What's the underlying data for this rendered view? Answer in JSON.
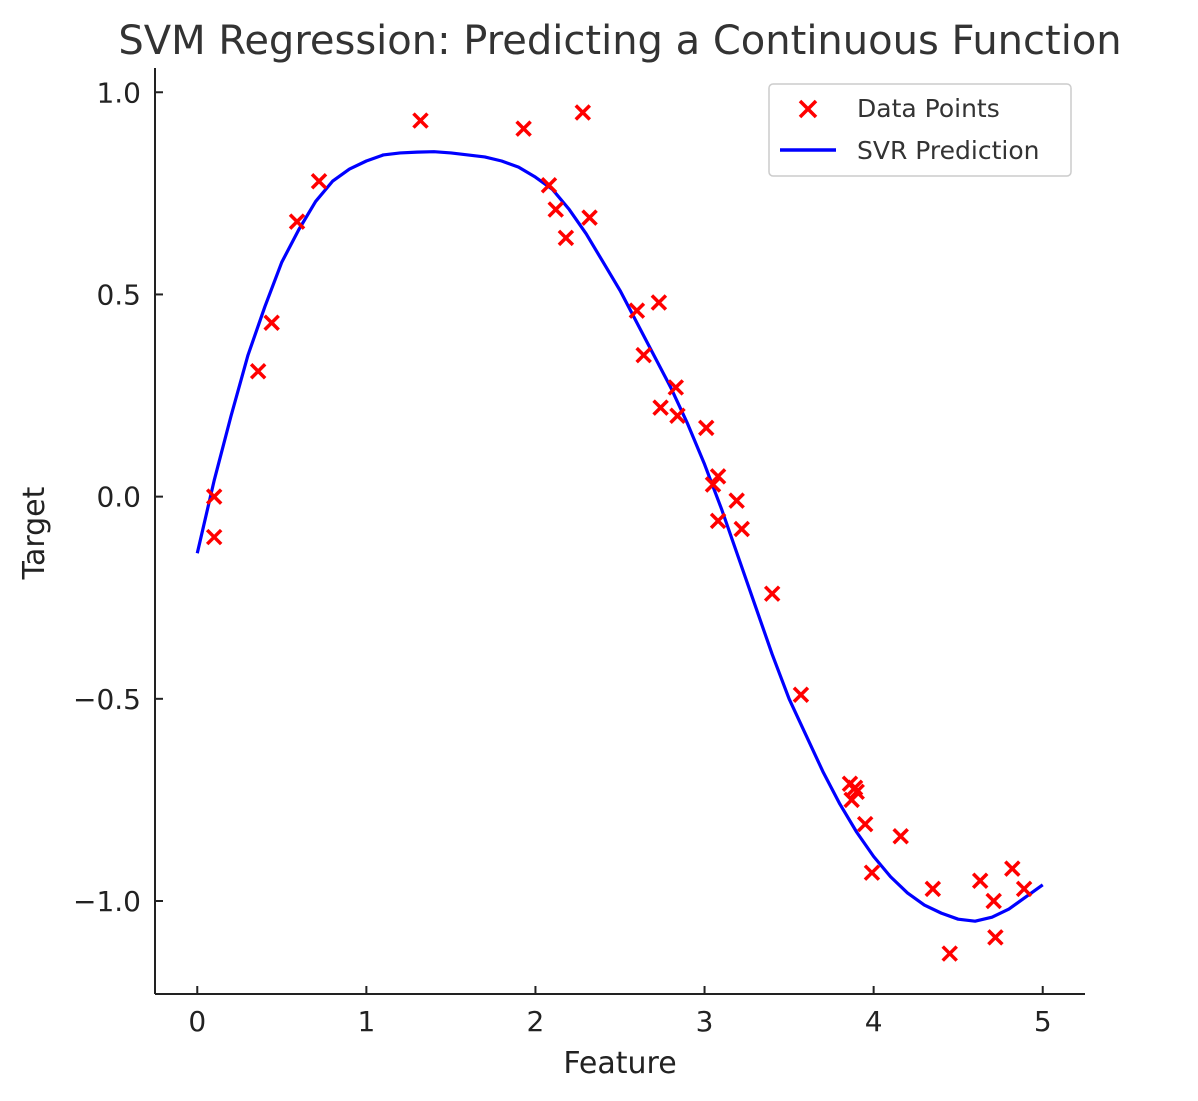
{
  "chart_data": {
    "type": "scatter",
    "title": "SVM Regression: Predicting a Continuous Function",
    "xlabel": "Feature",
    "ylabel": "Target",
    "xlim": [
      -0.25,
      5.25
    ],
    "ylim": [
      -1.23,
      1.06
    ],
    "x_ticks": [
      0,
      1,
      2,
      3,
      4,
      5
    ],
    "x_tick_labels": [
      "0",
      "1",
      "2",
      "3",
      "4",
      "5"
    ],
    "y_ticks": [
      1.0,
      0.5,
      0.0,
      -0.5,
      -1.0
    ],
    "y_tick_labels": [
      "1.0",
      "0.5",
      "0.0",
      "−0.5",
      "−1.0"
    ],
    "grid": false,
    "legend_position": "top-right",
    "series": [
      {
        "name": "Data Points",
        "kind": "scatter",
        "marker": "x",
        "color": "#ff0000",
        "x": [
          0.1,
          0.1,
          0.36,
          0.44,
          0.59,
          0.72,
          1.32,
          1.93,
          2.08,
          2.12,
          2.18,
          2.28,
          2.32,
          2.6,
          2.64,
          2.73,
          2.74,
          2.83,
          2.84,
          3.01,
          3.05,
          3.08,
          3.08,
          3.19,
          3.22,
          3.4,
          3.57,
          3.86,
          3.89,
          3.87,
          3.9,
          3.95,
          3.99,
          4.16,
          4.35,
          4.45,
          4.63,
          4.71,
          4.72,
          4.82,
          4.89
        ],
        "y": [
          0.0,
          -0.1,
          0.31,
          0.43,
          0.68,
          0.78,
          0.93,
          0.91,
          0.77,
          0.71,
          0.64,
          0.95,
          0.69,
          0.46,
          0.35,
          0.48,
          0.22,
          0.27,
          0.2,
          0.17,
          0.03,
          0.05,
          -0.06,
          -0.01,
          -0.08,
          -0.24,
          -0.49,
          -0.71,
          -0.72,
          -0.75,
          -0.73,
          -0.81,
          -0.93,
          -0.84,
          -0.97,
          -1.13,
          -0.95,
          -1.0,
          -1.09,
          -0.92,
          -0.97
        ]
      },
      {
        "name": "SVR Prediction",
        "kind": "line",
        "color": "#0000ff",
        "x": [
          0.0,
          0.1,
          0.2,
          0.3,
          0.4,
          0.5,
          0.6,
          0.7,
          0.8,
          0.9,
          1.0,
          1.1,
          1.2,
          1.3,
          1.4,
          1.5,
          1.6,
          1.7,
          1.8,
          1.9,
          2.0,
          2.1,
          2.2,
          2.3,
          2.4,
          2.5,
          2.6,
          2.7,
          2.8,
          2.9,
          3.0,
          3.1,
          3.2,
          3.3,
          3.4,
          3.5,
          3.6,
          3.7,
          3.8,
          3.9,
          4.0,
          4.1,
          4.2,
          4.3,
          4.4,
          4.5,
          4.6,
          4.7,
          4.8,
          4.9,
          5.0
        ],
        "y": [
          -0.14,
          0.04,
          0.2,
          0.35,
          0.47,
          0.58,
          0.66,
          0.73,
          0.78,
          0.81,
          0.83,
          0.845,
          0.85,
          0.852,
          0.853,
          0.85,
          0.845,
          0.84,
          0.83,
          0.815,
          0.79,
          0.76,
          0.71,
          0.65,
          0.58,
          0.51,
          0.43,
          0.35,
          0.27,
          0.18,
          0.08,
          -0.03,
          -0.15,
          -0.27,
          -0.39,
          -0.5,
          -0.59,
          -0.68,
          -0.76,
          -0.83,
          -0.89,
          -0.94,
          -0.98,
          -1.01,
          -1.03,
          -1.045,
          -1.05,
          -1.04,
          -1.02,
          -0.99,
          -0.96
        ]
      }
    ]
  }
}
